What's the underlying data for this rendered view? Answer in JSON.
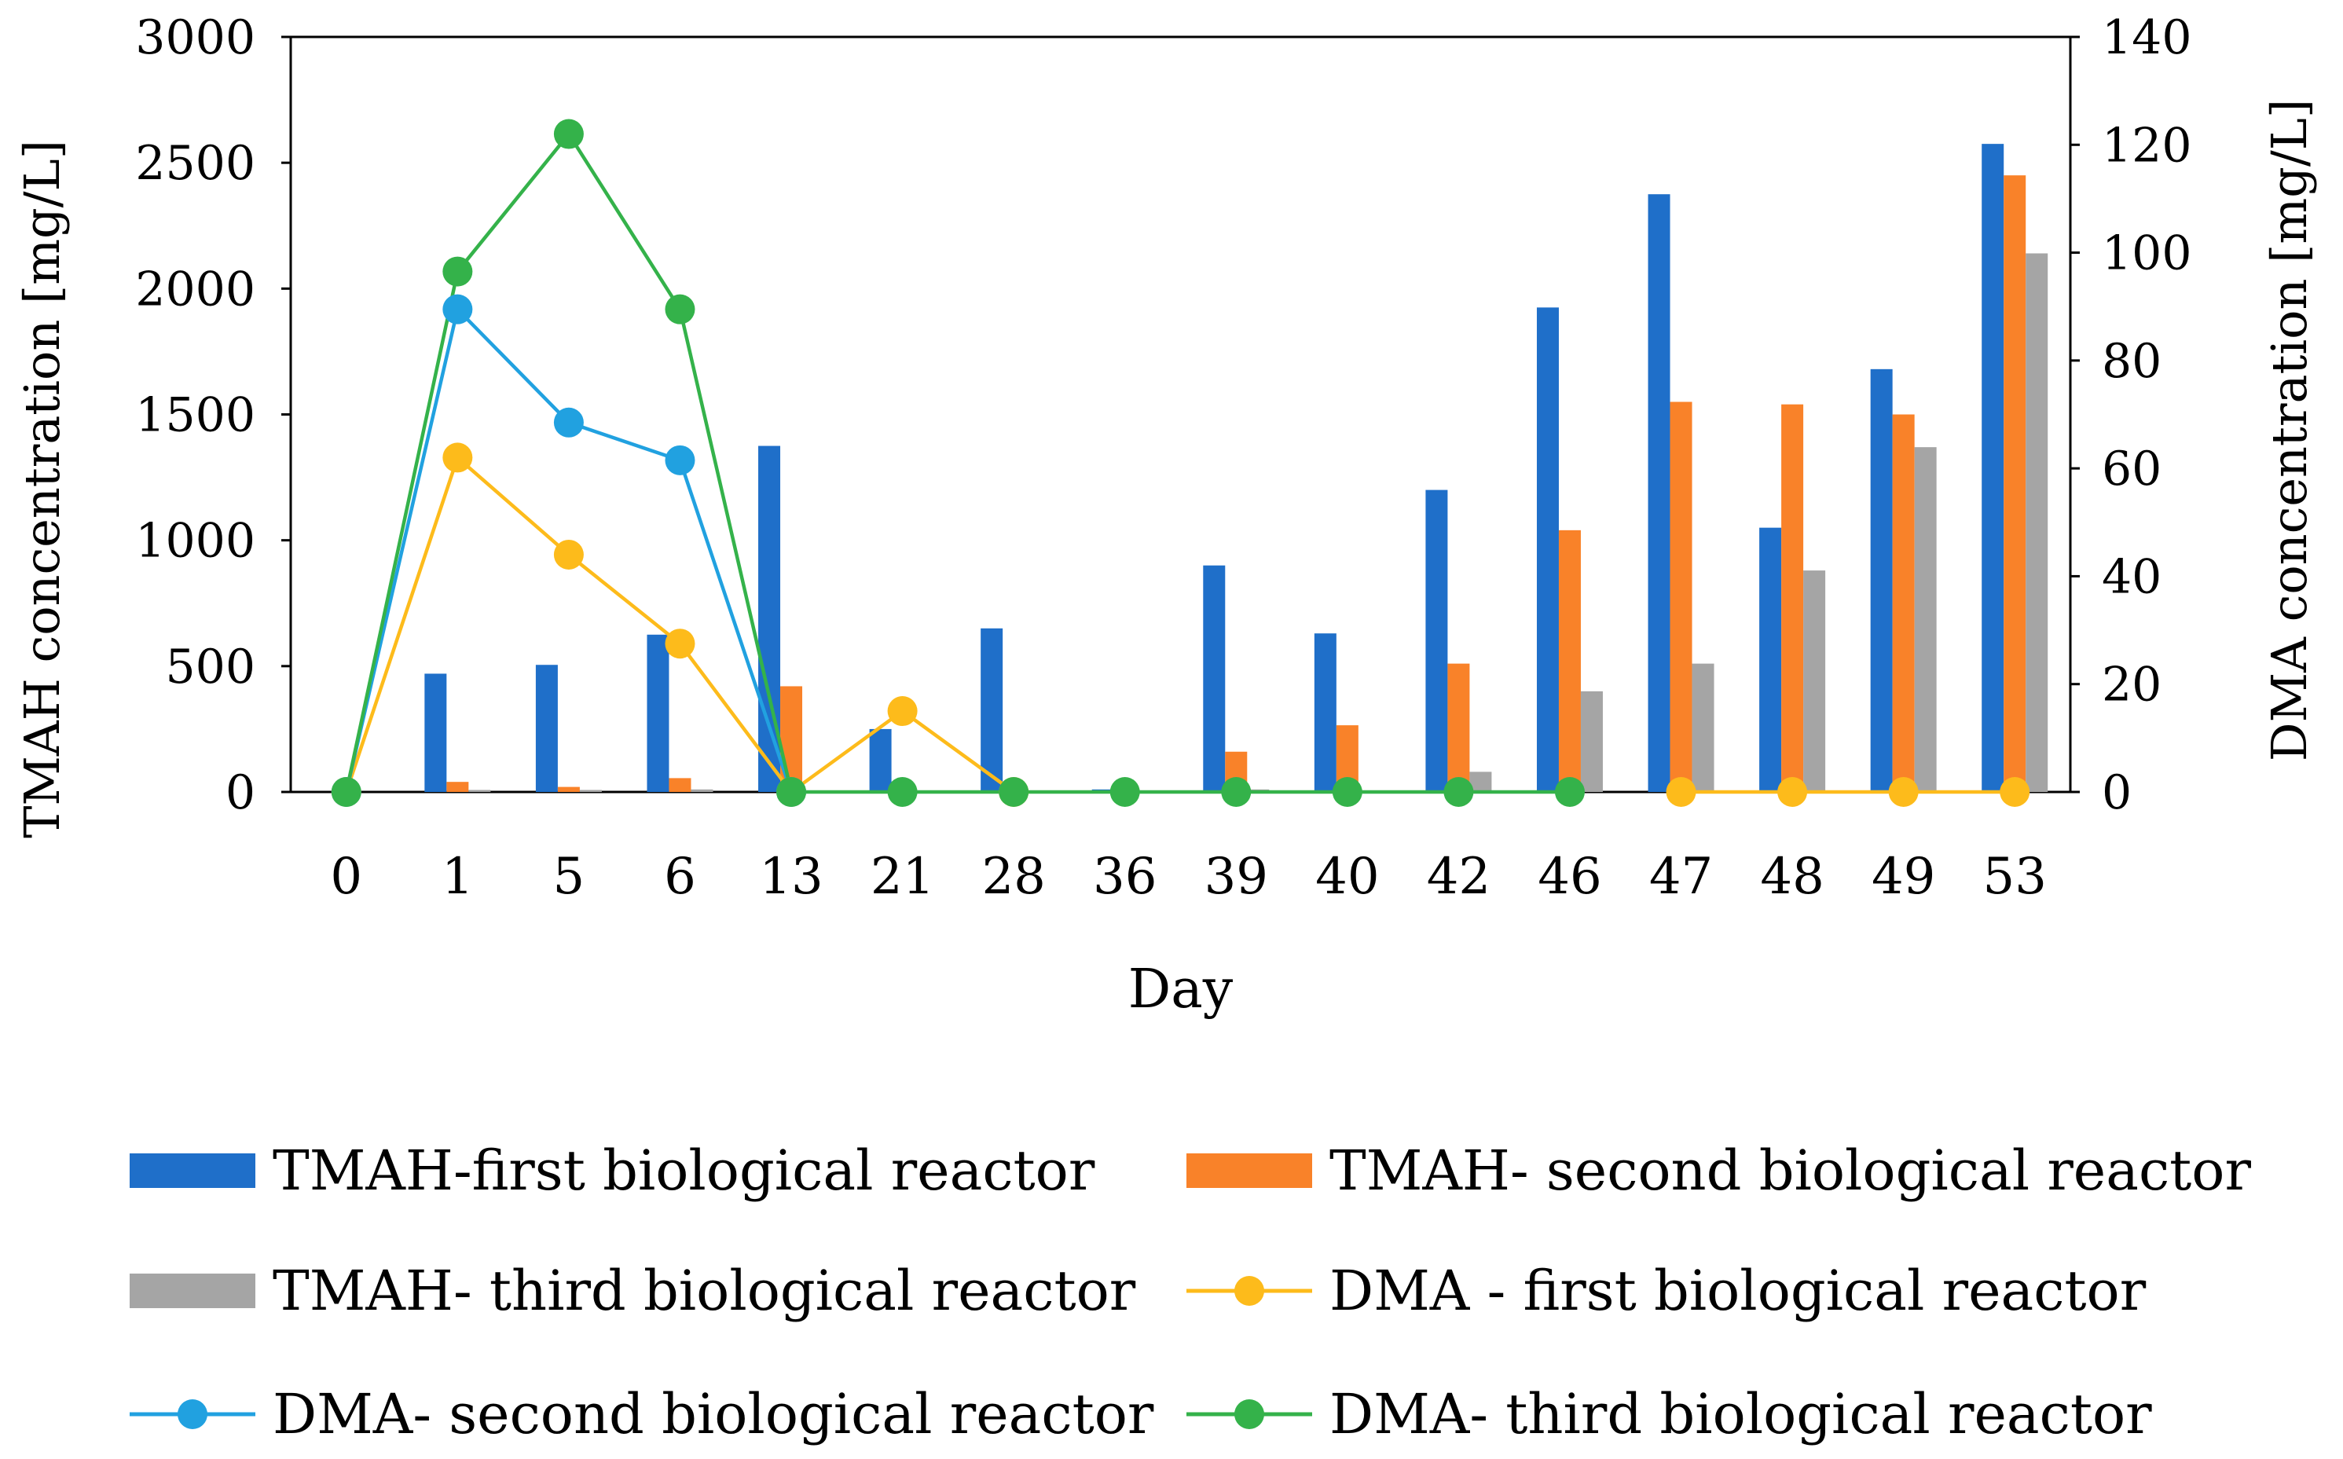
{
  "chart_data": {
    "type": "bar",
    "categories": [
      "0",
      "1",
      "5",
      "6",
      "13",
      "21",
      "28",
      "36",
      "39",
      "40",
      "42",
      "46",
      "47",
      "48",
      "49",
      "53"
    ],
    "xlabel": "Day",
    "ylabel": "TMAH concentration [mg/L]",
    "y2label": "DMA concentration [mg/L]",
    "ylim": [
      0,
      3000
    ],
    "y2lim": [
      0,
      140
    ],
    "yticks": [
      0,
      500,
      1000,
      1500,
      2000,
      2500,
      3000
    ],
    "y2ticks": [
      0,
      20,
      40,
      60,
      80,
      100,
      120,
      140
    ],
    "grid": false,
    "legend_position": "bottom",
    "bar_series": [
      {
        "name": "TMAH-first biological reactor",
        "color": "#1f6fc9",
        "values": [
          0,
          470,
          505,
          625,
          1375,
          250,
          650,
          10,
          900,
          630,
          1200,
          1925,
          2375,
          1050,
          1680,
          2575
        ]
      },
      {
        "name": "TMAH- second biological reactor",
        "color": "#f98229",
        "values": [
          0,
          40,
          20,
          55,
          420,
          0,
          0,
          0,
          160,
          265,
          510,
          1040,
          1550,
          1540,
          1500,
          2450
        ]
      },
      {
        "name": "TMAH- third biological reactor",
        "color": "#a5a5a5",
        "values": [
          0,
          8,
          8,
          10,
          5,
          0,
          0,
          0,
          10,
          5,
          80,
          400,
          510,
          880,
          1370,
          2140
        ]
      }
    ],
    "line_series": [
      {
        "name": "DMA - first biological reactor",
        "color": "#fdbb1b",
        "values": [
          0,
          62,
          44,
          27.5,
          0,
          15,
          0,
          null,
          null,
          null,
          null,
          null,
          0,
          0,
          0,
          0
        ]
      },
      {
        "name": "DMA- second biological reactor",
        "color": "#21a1e0",
        "values": [
          0,
          89.5,
          68.5,
          61.5,
          0,
          null,
          null,
          null,
          null,
          null,
          null,
          null,
          null,
          null,
          null,
          null
        ]
      },
      {
        "name": "DMA- third biological reactor",
        "color": "#34b24a",
        "values": [
          0,
          96.5,
          122,
          89.5,
          0,
          0,
          0,
          0,
          0,
          0,
          0,
          0,
          null,
          null,
          null,
          null
        ]
      }
    ]
  }
}
